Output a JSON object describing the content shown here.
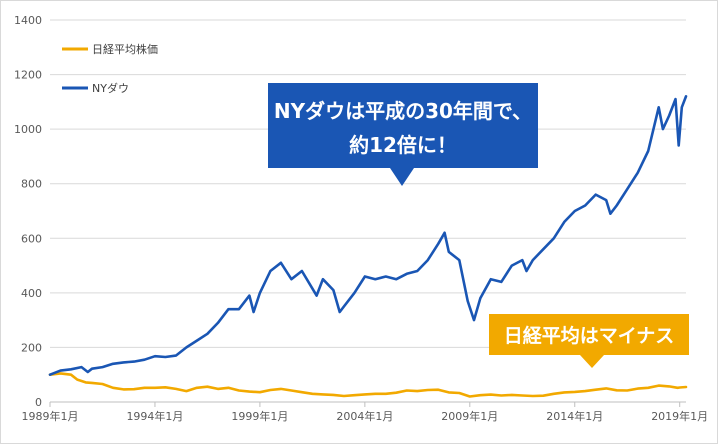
{
  "chart_data": {
    "type": "line",
    "yticks": [
      0,
      200,
      400,
      600,
      800,
      1000,
      1200,
      1400
    ],
    "ylim": [
      0,
      1400
    ],
    "xlim": [
      1989.0,
      2019.3
    ],
    "xticks": [
      {
        "label": "1989年1月",
        "x": 1989.0
      },
      {
        "label": "1994年1月",
        "x": 1994.0
      },
      {
        "label": "1999年1月",
        "x": 1999.0
      },
      {
        "label": "2004年1月",
        "x": 2004.0
      },
      {
        "label": "2009年1月",
        "x": 2009.0
      },
      {
        "label": "2014年1月",
        "x": 2014.0
      },
      {
        "label": "2019年1月",
        "x": 2019.0
      }
    ],
    "series": [
      {
        "name": "日経平均株価",
        "color": "#f2a900",
        "points": [
          [
            1989.0,
            100
          ],
          [
            1989.5,
            105
          ],
          [
            1990.0,
            100
          ],
          [
            1990.3,
            82
          ],
          [
            1990.7,
            72
          ],
          [
            1991.0,
            70
          ],
          [
            1991.5,
            66
          ],
          [
            1992.0,
            52
          ],
          [
            1992.5,
            46
          ],
          [
            1993.0,
            47
          ],
          [
            1993.5,
            52
          ],
          [
            1994.0,
            52
          ],
          [
            1994.5,
            54
          ],
          [
            1995.0,
            48
          ],
          [
            1995.5,
            40
          ],
          [
            1996.0,
            52
          ],
          [
            1996.5,
            56
          ],
          [
            1997.0,
            48
          ],
          [
            1997.5,
            52
          ],
          [
            1998.0,
            42
          ],
          [
            1998.5,
            38
          ],
          [
            1999.0,
            36
          ],
          [
            1999.5,
            44
          ],
          [
            2000.0,
            48
          ],
          [
            2000.5,
            42
          ],
          [
            2001.0,
            36
          ],
          [
            2001.5,
            30
          ],
          [
            2002.0,
            28
          ],
          [
            2002.5,
            26
          ],
          [
            2003.0,
            22
          ],
          [
            2003.5,
            25
          ],
          [
            2004.0,
            28
          ],
          [
            2004.5,
            30
          ],
          [
            2005.0,
            30
          ],
          [
            2005.5,
            34
          ],
          [
            2006.0,
            42
          ],
          [
            2006.5,
            40
          ],
          [
            2007.0,
            44
          ],
          [
            2007.5,
            45
          ],
          [
            2008.0,
            35
          ],
          [
            2008.5,
            33
          ],
          [
            2009.0,
            20
          ],
          [
            2009.5,
            25
          ],
          [
            2010.0,
            27
          ],
          [
            2010.5,
            24
          ],
          [
            2011.0,
            26
          ],
          [
            2011.5,
            24
          ],
          [
            2012.0,
            22
          ],
          [
            2012.5,
            23
          ],
          [
            2013.0,
            30
          ],
          [
            2013.5,
            35
          ],
          [
            2014.0,
            37
          ],
          [
            2014.5,
            40
          ],
          [
            2015.0,
            45
          ],
          [
            2015.5,
            50
          ],
          [
            2016.0,
            43
          ],
          [
            2016.5,
            42
          ],
          [
            2017.0,
            49
          ],
          [
            2017.5,
            52
          ],
          [
            2018.0,
            60
          ],
          [
            2018.5,
            57
          ],
          [
            2018.9,
            52
          ],
          [
            2019.0,
            53
          ],
          [
            2019.3,
            55
          ]
        ]
      },
      {
        "name": "NYダウ",
        "color": "#1a56b4",
        "points": [
          [
            1989.0,
            100
          ],
          [
            1989.5,
            115
          ],
          [
            1990.0,
            120
          ],
          [
            1990.5,
            128
          ],
          [
            1990.8,
            110
          ],
          [
            1991.0,
            122
          ],
          [
            1991.5,
            128
          ],
          [
            1992.0,
            140
          ],
          [
            1992.5,
            145
          ],
          [
            1993.0,
            148
          ],
          [
            1993.5,
            155
          ],
          [
            1994.0,
            168
          ],
          [
            1994.5,
            165
          ],
          [
            1995.0,
            170
          ],
          [
            1995.5,
            200
          ],
          [
            1996.0,
            225
          ],
          [
            1996.5,
            250
          ],
          [
            1997.0,
            290
          ],
          [
            1997.5,
            340
          ],
          [
            1998.0,
            340
          ],
          [
            1998.5,
            390
          ],
          [
            1998.7,
            330
          ],
          [
            1999.0,
            400
          ],
          [
            1999.5,
            480
          ],
          [
            2000.0,
            510
          ],
          [
            2000.5,
            450
          ],
          [
            2001.0,
            480
          ],
          [
            2001.7,
            390
          ],
          [
            2002.0,
            450
          ],
          [
            2002.5,
            410
          ],
          [
            2002.8,
            330
          ],
          [
            2003.0,
            350
          ],
          [
            2003.5,
            400
          ],
          [
            2004.0,
            460
          ],
          [
            2004.5,
            450
          ],
          [
            2005.0,
            460
          ],
          [
            2005.5,
            450
          ],
          [
            2006.0,
            470
          ],
          [
            2006.5,
            480
          ],
          [
            2007.0,
            520
          ],
          [
            2007.5,
            580
          ],
          [
            2007.8,
            620
          ],
          [
            2008.0,
            550
          ],
          [
            2008.5,
            520
          ],
          [
            2008.9,
            370
          ],
          [
            2009.2,
            300
          ],
          [
            2009.5,
            380
          ],
          [
            2010.0,
            450
          ],
          [
            2010.5,
            440
          ],
          [
            2011.0,
            500
          ],
          [
            2011.5,
            520
          ],
          [
            2011.7,
            480
          ],
          [
            2012.0,
            520
          ],
          [
            2012.5,
            560
          ],
          [
            2013.0,
            600
          ],
          [
            2013.5,
            660
          ],
          [
            2014.0,
            700
          ],
          [
            2014.5,
            720
          ],
          [
            2015.0,
            760
          ],
          [
            2015.5,
            740
          ],
          [
            2015.7,
            690
          ],
          [
            2016.0,
            720
          ],
          [
            2016.5,
            780
          ],
          [
            2017.0,
            840
          ],
          [
            2017.5,
            920
          ],
          [
            2018.0,
            1080
          ],
          [
            2018.2,
            1000
          ],
          [
            2018.5,
            1050
          ],
          [
            2018.8,
            1110
          ],
          [
            2018.95,
            940
          ],
          [
            2019.1,
            1080
          ],
          [
            2019.3,
            1120
          ]
        ]
      }
    ]
  },
  "callouts": {
    "ny_line1": "NYダウは平成の30年間で、",
    "ny_line2": "約12倍に！",
    "nikkei": "日経平均はマイナス",
    "ny_color": "#1a56b4",
    "nikkei_color": "#f2a900"
  }
}
